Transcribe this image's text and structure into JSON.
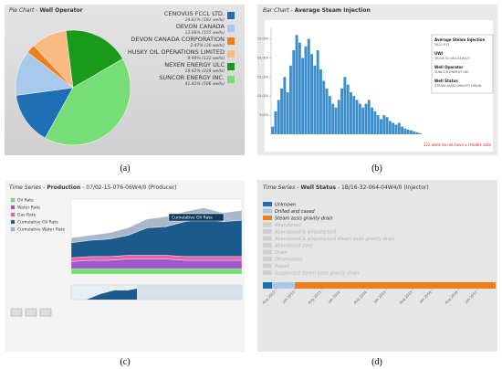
{
  "captions": [
    "(a)",
    "(b)",
    "(c)",
    "(d)"
  ],
  "chart_data": [
    {
      "type": "pie",
      "title_prefix": "Pie Chart -",
      "title": "Well Operator",
      "categories": [
        "CENOVUS FCCL LTD.",
        "DEVON CANADA",
        "DEVON CANADA CORPORATION",
        "HUSKY OIL OPERATIONS LIMITED",
        "NEXEN ENERGY ULC",
        "SUNCOR ENERGY INC."
      ],
      "values": [
        14.81,
        12.68,
        2.47,
        9.99,
        18.62,
        41.43
      ],
      "value_labels": [
        "14.81% (181 wells)",
        "12.68% (155 wells)",
        "2.47% (30 wells)",
        "9.99% (122 wells)",
        "18.62% (228 wells)",
        "41.43% (506 wells)"
      ],
      "colors": [
        "#1f6fb5",
        "#a8c8ec",
        "#f07f19",
        "#f9bb83",
        "#1a9a1a",
        "#77dd77"
      ]
    },
    {
      "type": "bar",
      "title_prefix": "Bar Chart -",
      "title": "Average Steam Injection",
      "values": [
        2000,
        6000,
        9000,
        12000,
        15000,
        11000,
        18000,
        22000,
        26000,
        24000,
        20000,
        23000,
        25000,
        21000,
        18000,
        22000,
        17000,
        14000,
        12000,
        10000,
        8000,
        7000,
        9000,
        12000,
        15000,
        13000,
        11000,
        10000,
        9000,
        8000,
        7000,
        8000,
        9000,
        7000,
        6000,
        5000,
        4000,
        5000,
        4500,
        3500,
        3000,
        2500,
        3000,
        2000,
        1500,
        1200,
        1000,
        800,
        500,
        300
      ],
      "color": "#3d8fcc",
      "ylim": [
        0,
        28000
      ],
      "yticks": [
        {
          "value": 5000,
          "label": "5,000"
        },
        {
          "value": 10000,
          "label": "10,000"
        },
        {
          "value": 15000,
          "label": "15,000"
        },
        {
          "value": 20000,
          "label": "20,000"
        },
        {
          "value": 25000,
          "label": "25,000"
        }
      ],
      "info": [
        {
          "label": "Average Steam Injection",
          "value": "3922.971"
        },
        {
          "label": "UWI",
          "value": "1B/16-32-064-04W4/0"
        },
        {
          "label": "Well Operator",
          "value": "SUNCOR ENERGY INC."
        },
        {
          "label": "Well Status",
          "value": "STEAM ASSIS GRAVITY DRAIN"
        }
      ],
      "note": "322 wells do not have a reliable data"
    },
    {
      "type": "area",
      "title_prefix": "Time Series -",
      "title": "Production",
      "subtitle": "- 07/02-15-076-06W4/0 (Producer)",
      "categories": [
        null,
        null,
        null,
        null,
        null,
        null,
        null,
        null,
        null,
        null
      ],
      "series": [
        {
          "name": "Oil Rate",
          "color": "#6be36b",
          "values": [
            2,
            2,
            2,
            2,
            2,
            2,
            2,
            2,
            2,
            2
          ]
        },
        {
          "name": "Water Rate",
          "color": "#9b59c9",
          "values": [
            3,
            3.5,
            3.5,
            4,
            4,
            4,
            3.5,
            3.5,
            3.5,
            3.5
          ]
        },
        {
          "name": "Gas Rate",
          "color": "#ee5fa8",
          "values": [
            1.5,
            1.5,
            1.5,
            1.5,
            1.5,
            1.5,
            1.5,
            1.5,
            1.5,
            1.5
          ]
        },
        {
          "name": "Cumulative Oil Rate",
          "color": "#1c5a8c",
          "values": [
            6,
            6.5,
            7,
            8,
            11,
            11.5,
            14,
            15,
            14,
            14.5
          ]
        },
        {
          "name": "Cumulative Water Rate",
          "color": "#a9b8c8",
          "values": [
            2,
            2,
            2.5,
            3,
            3.5,
            4,
            4,
            4.5,
            3.5,
            4
          ]
        }
      ],
      "ylim": [
        0,
        30
      ],
      "tooltip": "Cumulative Oil Rate"
    },
    {
      "type": "timeline",
      "title_prefix": "Time Series -",
      "title": "Well Status",
      "subtitle": "- 1B/16-32-064-04W4/0 (Injector)",
      "statuses": [
        {
          "name": "Unknown",
          "color": "#1f6fb5",
          "active": true
        },
        {
          "name": "Drilled and cased",
          "color": "#a8c8ec",
          "active": true
        },
        {
          "name": "Steam assis gravity drain",
          "color": "#f07f19",
          "active": true
        },
        {
          "name": "Abandoned",
          "color": "#cccccc",
          "active": false
        },
        {
          "name": "Abandoned & whipstocked",
          "color": "#cccccc",
          "active": false
        },
        {
          "name": "Abandoned & whipstocked steam assis gravity drain",
          "color": "#cccccc",
          "active": false
        },
        {
          "name": "Abandoned zone",
          "color": "#cccccc",
          "active": false
        },
        {
          "name": "Drain",
          "color": "#cccccc",
          "active": false
        },
        {
          "name": "Observation",
          "color": "#cccccc",
          "active": false
        },
        {
          "name": "Preset",
          "color": "#cccccc",
          "active": false
        },
        {
          "name": "Suspended steam assis gravity drain",
          "color": "#cccccc",
          "active": false
        }
      ],
      "segments": [
        {
          "status": 0,
          "start": 2012.3,
          "end": 2012.5
        },
        {
          "status": 1,
          "start": 2012.5,
          "end": 2013.0
        },
        {
          "status": 2,
          "start": 2013.0,
          "end": 2017.4
        }
      ],
      "xlim": [
        2012.3,
        2017.4
      ],
      "xticks": [
        {
          "value": 2012.58,
          "label": "Aug 2012"
        },
        {
          "value": 2013.0,
          "label": "Jan 2013"
        },
        {
          "value": 2013.58,
          "label": "Aug 2013"
        },
        {
          "value": 2014.0,
          "label": "Jan 2014"
        },
        {
          "value": 2014.58,
          "label": "Aug 2014"
        },
        {
          "value": 2015.0,
          "label": "Jan 2015"
        },
        {
          "value": 2015.58,
          "label": "Aug 2015"
        },
        {
          "value": 2016.0,
          "label": "Jan 2016"
        },
        {
          "value": 2016.58,
          "label": "Aug 2016"
        },
        {
          "value": 2017.0,
          "label": "Jan 2017"
        }
      ]
    }
  ]
}
